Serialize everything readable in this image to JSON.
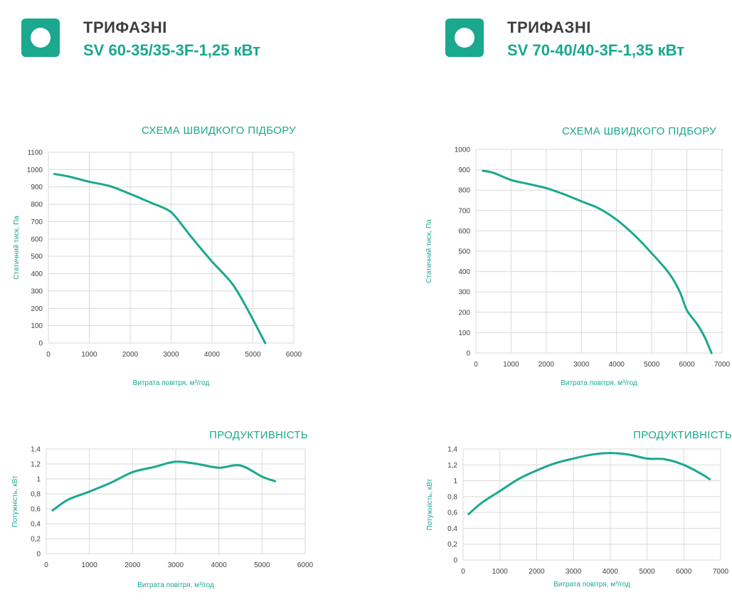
{
  "colors": {
    "accent": "#1aa88f",
    "curve": "#1aa88f",
    "grid": "#d9d9d9",
    "axis_text": "#404040"
  },
  "logo_icon": "circle-in-square-icon",
  "models": [
    {
      "type_label": "ТРИФАЗНІ",
      "model_name": "SV 60-35/35-3F-1,25 кВт"
    },
    {
      "type_label": "ТРИФАЗНІ",
      "model_name": "SV 70-40/40-3F-1,35 кВт"
    }
  ],
  "chart_data": [
    {
      "type": "line",
      "title": "СХЕМА ШВИДКОГО ПІДБОРУ",
      "xlabel": "Витрата повітря, м³/год",
      "ylabel": "Статичний тиск, Па",
      "xlim": [
        0,
        6000
      ],
      "ylim": [
        0,
        1100
      ],
      "xticks": [
        "0",
        "1000",
        "2000",
        "3000",
        "4000",
        "5000",
        "6000"
      ],
      "yticks": [
        "0",
        "100",
        "200",
        "300",
        "400",
        "500",
        "600",
        "700",
        "800",
        "900",
        "1000",
        "1100"
      ],
      "grid": true,
      "series": [
        {
          "name": "SV 60-35/35-3F-1,25 кВт",
          "x": [
            150,
            500,
            1000,
            1500,
            2000,
            2500,
            2900,
            3100,
            3500,
            4000,
            4500,
            4900,
            5300
          ],
          "y": [
            975,
            960,
            930,
            905,
            860,
            810,
            770,
            730,
            610,
            470,
            340,
            180,
            0
          ]
        }
      ]
    },
    {
      "type": "line",
      "title": "СХЕМА ШВИДКОГО ПІДБОРУ",
      "xlabel": "Витрата повітря, м³/год",
      "ylabel": "Статичний тиск, Па",
      "xlim": [
        0,
        7000
      ],
      "ylim": [
        0,
        1000
      ],
      "xticks": [
        "0",
        "1000",
        "2000",
        "3000",
        "4000",
        "5000",
        "6000",
        "7000"
      ],
      "yticks": [
        "0",
        "100",
        "200",
        "300",
        "400",
        "500",
        "600",
        "700",
        "800",
        "900",
        "1000"
      ],
      "grid": true,
      "series": [
        {
          "name": "SV 70-40/40-3F-1,35 кВт",
          "x": [
            200,
            500,
            1000,
            1500,
            2000,
            2500,
            3000,
            3500,
            4000,
            4500,
            5000,
            5500,
            5800,
            6000,
            6300,
            6500,
            6700
          ],
          "y": [
            895,
            885,
            850,
            830,
            810,
            780,
            745,
            710,
            655,
            580,
            490,
            390,
            300,
            210,
            140,
            80,
            0
          ]
        }
      ]
    },
    {
      "type": "line",
      "title": "ПРОДУКТИВНІСТЬ",
      "xlabel": "Витрата повітря, м³/год",
      "ylabel": "Потужність, кВт",
      "xlim": [
        0,
        6000
      ],
      "ylim": [
        0,
        1.4
      ],
      "xticks": [
        "0",
        "1000",
        "2000",
        "3000",
        "4000",
        "5000",
        "6000"
      ],
      "yticks": [
        "0",
        "0,2",
        "0,4",
        "0,6",
        "0,8",
        "1",
        "1,2",
        "1,4"
      ],
      "grid": true,
      "series": [
        {
          "name": "SV 60-35/35-3F-1,25 кВт",
          "x": [
            150,
            500,
            1000,
            1500,
            2000,
            2500,
            3000,
            3500,
            4000,
            4500,
            5000,
            5300
          ],
          "y": [
            0.58,
            0.72,
            0.83,
            0.95,
            1.09,
            1.16,
            1.23,
            1.2,
            1.15,
            1.18,
            1.03,
            0.97
          ]
        }
      ]
    },
    {
      "type": "line",
      "title": "ПРОДУКТИВНІСТЬ",
      "xlabel": "Витрата повітря, м³/год",
      "ylabel": "Потужність, кВт",
      "xlim": [
        0,
        7000
      ],
      "ylim": [
        0,
        1.4
      ],
      "xticks": [
        "0",
        "1000",
        "2000",
        "3000",
        "4000",
        "5000",
        "6000",
        "7000"
      ],
      "yticks": [
        "0",
        "0,2",
        "0,4",
        "0,6",
        "0,8",
        "1",
        "1,2",
        "1,4"
      ],
      "grid": true,
      "series": [
        {
          "name": "SV 70-40/40-3F-1,35 кВт",
          "x": [
            150,
            500,
            1000,
            1500,
            2000,
            2500,
            3000,
            3500,
            4000,
            4500,
            5000,
            5500,
            6000,
            6500,
            6700
          ],
          "y": [
            0.58,
            0.72,
            0.87,
            1.02,
            1.13,
            1.22,
            1.28,
            1.33,
            1.35,
            1.33,
            1.28,
            1.27,
            1.2,
            1.08,
            1.02
          ]
        }
      ]
    }
  ]
}
